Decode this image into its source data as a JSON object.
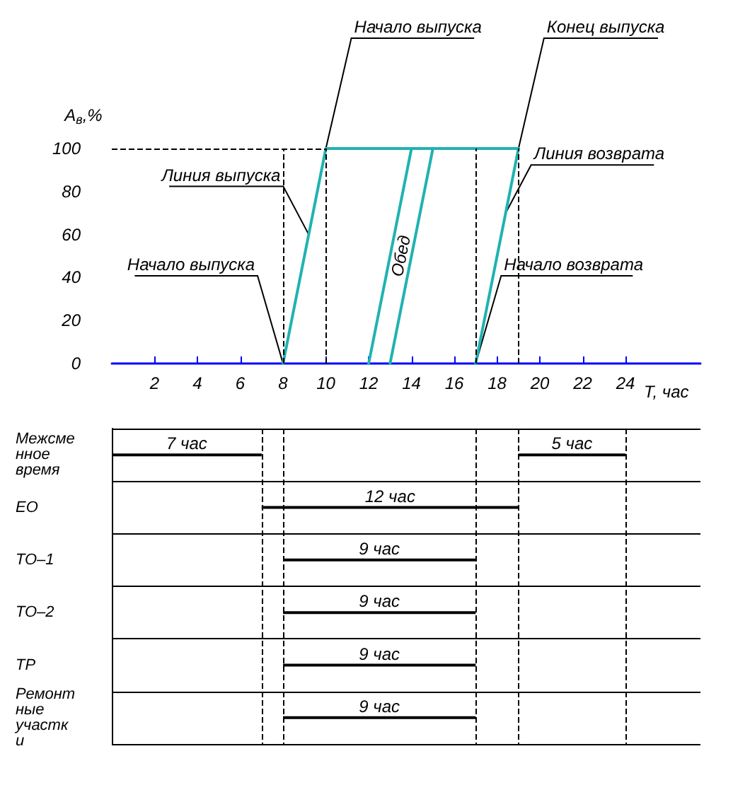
{
  "chart_data": [
    {
      "type": "line",
      "xlabel": "T, час",
      "ylabel": "A$_{в}$,%",
      "xlim": [
        0,
        27.5
      ],
      "ylim": [
        0,
        100
      ],
      "xticks": [
        2,
        4,
        6,
        8,
        10,
        12,
        14,
        16,
        18,
        20,
        22,
        24
      ],
      "yticks": [
        0,
        20,
        40,
        60,
        80,
        100
      ],
      "grid": false,
      "legend": false,
      "marker": "none",
      "line_style": "solid",
      "series": [
        {
          "color": "#20b2b2",
          "x": [
            8,
            10,
            19
          ],
          "values": [
            0,
            100,
            100
          ]
        },
        {
          "name": "Обед",
          "color": "#20b2b2",
          "x": [
            12,
            14,
            13.5,
            13,
            15
          ],
          "values": [
            0,
            100,
            null,
            0,
            100
          ]
        },
        {
          "color": "#20b2b2",
          "x": [
            17,
            19
          ],
          "values": [
            0,
            100
          ]
        }
      ],
      "ref_lines": [
        {
          "axis": "y",
          "value": 100,
          "line_style": "dashed",
          "color": "#000000"
        },
        {
          "axis": "x",
          "value": 8,
          "line_style": "dashed",
          "color": "#000000"
        },
        {
          "axis": "x",
          "value": 10,
          "line_style": "dashed",
          "color": "#000000"
        },
        {
          "axis": "x",
          "value": 17,
          "line_style": "dashed",
          "color": "#000000"
        },
        {
          "axis": "x",
          "value": 19,
          "line_style": "dashed",
          "color": "#000000"
        }
      ],
      "annotations": [
        {
          "text": "Начало выпуска",
          "x": 10,
          "y": 100
        },
        {
          "text": "Конец выпуска",
          "x": 19,
          "y": 100
        },
        {
          "text": "Линия выпуска",
          "x": 9.2,
          "y": 60
        },
        {
          "text": "Линия возврата",
          "x": 18.4,
          "y": 70
        },
        {
          "text": "Начало выпуска",
          "x": 8,
          "y": 0
        },
        {
          "text": "Начало возврата",
          "x": 17,
          "y": 0
        }
      ]
    },
    {
      "type": "bar",
      "orientation": "horizontal",
      "categories": [
        "Межсменное время",
        "ЕО",
        "ТО–1",
        "ТО–2",
        "ТР",
        "Ремонтные участки"
      ],
      "xlim": [
        0,
        27.5
      ],
      "tick_labels": "y",
      "grid": "y",
      "series": [
        {
          "color": "#000000",
          "base": [
            0,
            7,
            8,
            8,
            8,
            8
          ],
          "values": [
            7,
            12,
            9,
            9,
            9,
            9
          ],
          "value_labels": [
            "7 час",
            "12 час",
            "9 час",
            "9 час",
            "9 час",
            "9 час"
          ]
        },
        {
          "color": "#000000",
          "base": [
            19,
            null,
            null,
            null,
            null,
            null
          ],
          "values": [
            5,
            null,
            null,
            null,
            null,
            null
          ],
          "value_labels": [
            "5 час",
            null,
            null,
            null,
            null,
            null
          ]
        }
      ],
      "ref_lines": [
        {
          "axis": "x",
          "value": 7,
          "line_style": "dashed",
          "color": "#000000"
        },
        {
          "axis": "x",
          "value": 8,
          "line_style": "dashed",
          "color": "#000000"
        },
        {
          "axis": "x",
          "value": 17,
          "line_style": "dashed",
          "color": "#000000"
        },
        {
          "axis": "x",
          "value": 19,
          "line_style": "dashed",
          "color": "#000000"
        },
        {
          "axis": "x",
          "value": 24,
          "line_style": "dashed",
          "color": "#000000"
        }
      ]
    }
  ]
}
